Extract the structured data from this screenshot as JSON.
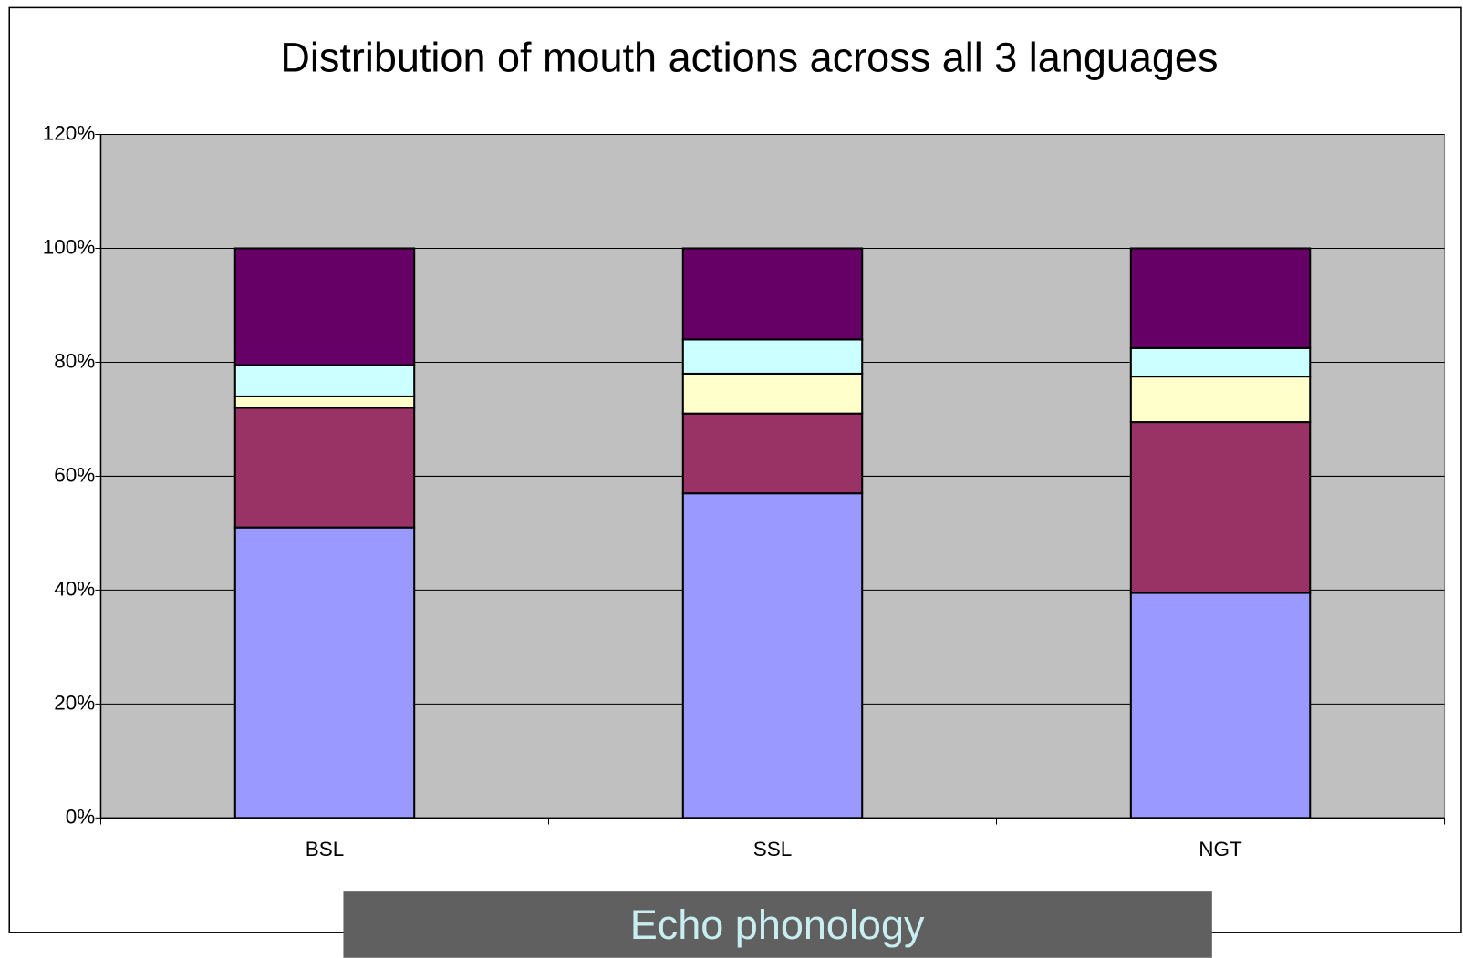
{
  "chart_data": {
    "type": "stacked_bar",
    "title": "Distribution of mouth actions across all 3 languages",
    "categories": [
      "BSL",
      "SSL",
      "NGT"
    ],
    "series": [
      {
        "color": "#9999ff",
        "values": [
          51,
          57,
          39.5
        ]
      },
      {
        "color": "#993366",
        "values": [
          21,
          14,
          30
        ]
      },
      {
        "color": "#ffffcc",
        "values": [
          2,
          7,
          8
        ]
      },
      {
        "color": "#ccffff",
        "values": [
          5.5,
          6,
          5
        ]
      },
      {
        "color": "#660066",
        "values": [
          20.5,
          16,
          17.5
        ]
      }
    ],
    "ylim": [
      0,
      120
    ],
    "yticks": [
      {
        "value": 0,
        "label": "0%"
      },
      {
        "value": 20,
        "label": "20%"
      },
      {
        "value": 40,
        "label": "40%"
      },
      {
        "value": 60,
        "label": "60%"
      },
      {
        "value": 80,
        "label": "80%"
      },
      {
        "value": 100,
        "label": "100%"
      },
      {
        "value": 120,
        "label": "120%"
      }
    ],
    "grid": true,
    "plot_background": "#c0c0c0",
    "annotation": "Echo phonology"
  }
}
